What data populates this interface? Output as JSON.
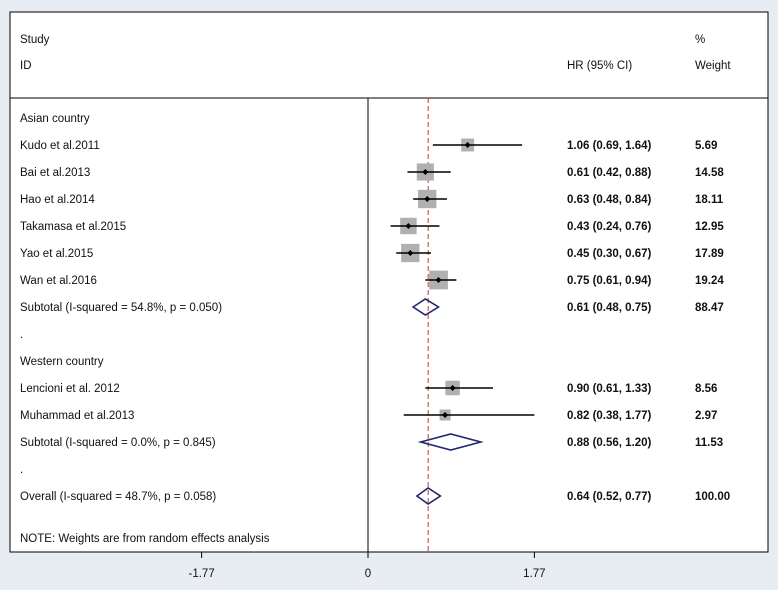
{
  "header": {
    "study_line1": "Study",
    "study_line2": "ID",
    "hr_header": "HR (95% CI)",
    "weight_line1": "%",
    "weight_line2": "Weight"
  },
  "chart_data": {
    "type": "forest",
    "x_ticks": [
      {
        "value": -1.77,
        "label": "-1.77"
      },
      {
        "value": 0,
        "label": "0"
      },
      {
        "value": 1.77,
        "label": "1.77"
      }
    ],
    "xlim": [
      -1.77,
      1.77
    ],
    "null_line": 0,
    "overall_effect_line": 0.64,
    "rows": [
      {
        "kind": "group",
        "label": "Asian country"
      },
      {
        "kind": "study",
        "label": "Kudo et al.2011",
        "hr": 1.06,
        "lo": 0.69,
        "hi": 1.64,
        "ci_text": "1.06 (0.69, 1.64)",
        "weight": 5.69,
        "weight_text": "5.69"
      },
      {
        "kind": "study",
        "label": "Bai et al.2013",
        "hr": 0.61,
        "lo": 0.42,
        "hi": 0.88,
        "ci_text": "0.61 (0.42, 0.88)",
        "weight": 14.58,
        "weight_text": "14.58"
      },
      {
        "kind": "study",
        "label": "Hao et al.2014",
        "hr": 0.63,
        "lo": 0.48,
        "hi": 0.84,
        "ci_text": "0.63 (0.48, 0.84)",
        "weight": 18.11,
        "weight_text": "18.11"
      },
      {
        "kind": "study",
        "label": "Takamasa et al.2015",
        "hr": 0.43,
        "lo": 0.24,
        "hi": 0.76,
        "ci_text": "0.43 (0.24, 0.76)",
        "weight": 12.95,
        "weight_text": "12.95"
      },
      {
        "kind": "study",
        "label": "Yao et al.2015",
        "hr": 0.45,
        "lo": 0.3,
        "hi": 0.67,
        "ci_text": "0.45 (0.30, 0.67)",
        "weight": 17.89,
        "weight_text": "17.89"
      },
      {
        "kind": "study",
        "label": "Wan et al.2016",
        "hr": 0.75,
        "lo": 0.61,
        "hi": 0.94,
        "ci_text": "0.75 (0.61, 0.94)",
        "weight": 19.24,
        "weight_text": "19.24"
      },
      {
        "kind": "subtotal",
        "label": "Subtotal  (I-squared = 54.8%, p = 0.050)",
        "hr": 0.61,
        "lo": 0.48,
        "hi": 0.75,
        "ci_text": "0.61 (0.48, 0.75)",
        "weight": 88.47,
        "weight_text": "88.47"
      },
      {
        "kind": "spacer",
        "label": "."
      },
      {
        "kind": "group",
        "label": "Western country"
      },
      {
        "kind": "study",
        "label": "Lencioni et al. 2012",
        "hr": 0.9,
        "lo": 0.61,
        "hi": 1.33,
        "ci_text": "0.90 (0.61, 1.33)",
        "weight": 8.56,
        "weight_text": "8.56"
      },
      {
        "kind": "study",
        "label": "Muhammad et al.2013",
        "hr": 0.82,
        "lo": 0.38,
        "hi": 1.77,
        "ci_text": "0.82 (0.38, 1.77)",
        "weight": 2.97,
        "weight_text": "2.97"
      },
      {
        "kind": "subtotal",
        "label": "Subtotal  (I-squared = 0.0%, p = 0.845)",
        "hr": 0.88,
        "lo": 0.56,
        "hi": 1.2,
        "ci_text": "0.88 (0.56, 1.20)",
        "weight": 11.53,
        "weight_text": "11.53"
      },
      {
        "kind": "spacer",
        "label": "."
      },
      {
        "kind": "overall",
        "label": "Overall  (I-squared = 48.7%, p = 0.058)",
        "hr": 0.64,
        "lo": 0.52,
        "hi": 0.77,
        "ci_text": "0.64 (0.52, 0.77)",
        "weight": 100.0,
        "weight_text": "100.00"
      }
    ],
    "note": "NOTE: Weights are from random effects analysis",
    "colors": {
      "background": "#e8ecf3",
      "plot_area": "#ffffff",
      "axis": "#000000",
      "effect_line": "#c0392b",
      "weight_box": "#b0b0b0",
      "diamond": "#1f2a6e"
    }
  }
}
